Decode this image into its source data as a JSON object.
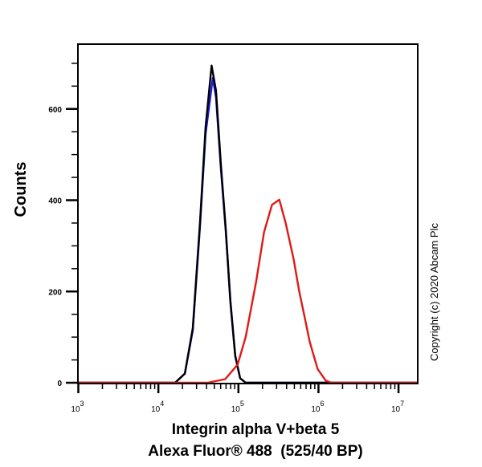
{
  "chart_data": {
    "type": "line",
    "title": "",
    "xlabel": "Integrin alpha V+beta 5",
    "xlabel2": "Alexa Fluor® 488  (525/40 BP)",
    "ylabel": "Counts",
    "x_scale": "log",
    "xlim": [
      1000,
      17000000
    ],
    "ylim": [
      0,
      742
    ],
    "x_ticks": [
      {
        "base": "10",
        "exp": "3",
        "value": 1000
      },
      {
        "base": "10",
        "exp": "4",
        "value": 10000
      },
      {
        "base": "10",
        "exp": "5",
        "value": 100000
      },
      {
        "base": "10",
        "exp": "6",
        "value": 1000000
      },
      {
        "base": "10",
        "exp": "7",
        "value": 10000000
      }
    ],
    "y_ticks": [
      {
        "label": "0",
        "value": 0
      },
      {
        "label": "200",
        "value": 200
      },
      {
        "label": "400",
        "value": 400
      },
      {
        "label": "600",
        "value": 600
      }
    ],
    "grid": false,
    "series": [
      {
        "color": "#1a1adc",
        "x": [
          16200,
          21400,
          26900,
          33100,
          38900,
          47900,
          52500,
          60300,
          69200,
          79400,
          91200,
          105000,
          123000
        ],
        "y": [
          0,
          20,
          115,
          340,
          545,
          668,
          625,
          470,
          335,
          175,
          58,
          10,
          0
        ]
      },
      {
        "color": "#000000",
        "x": [
          16200,
          21400,
          26900,
          33100,
          38900,
          46200,
          52500,
          60300,
          69200,
          79400,
          91200,
          105000,
          123000
        ],
        "y": [
          0,
          20,
          120,
          350,
          560,
          695,
          640,
          480,
          340,
          180,
          60,
          10,
          0
        ]
      },
      {
        "color": "#e01818",
        "x": [
          41200,
          68400,
          97700,
          123000,
          166000,
          209000,
          263000,
          324000,
          389000,
          490000,
          575000,
          661000,
          776000,
          977000,
          1230000,
          1450000
        ],
        "y": [
          0,
          8,
          40,
          100,
          220,
          330,
          390,
          401,
          350,
          270,
          200,
          150,
          90,
          30,
          5,
          0
        ]
      }
    ]
  },
  "copyright": "Copyright (c) 2020 Abcam Plc"
}
